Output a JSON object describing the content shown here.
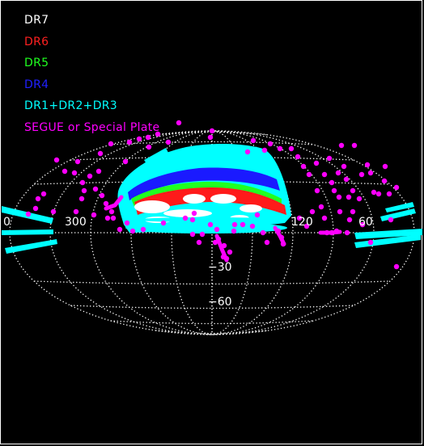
{
  "legend": {
    "items": [
      {
        "label": "DR7",
        "color": "#ffffff"
      },
      {
        "label": "DR6",
        "color": "#ff2020"
      },
      {
        "label": "DR5",
        "color": "#20ff20"
      },
      {
        "label": "DR4",
        "color": "#2020ff"
      },
      {
        "label": "DR1+DR2+DR3",
        "color": "#00ffff"
      },
      {
        "label": "SEGUE or Special Plate",
        "color": "#ff00ff"
      }
    ]
  },
  "map": {
    "projection": "aitoff",
    "graticule_color": "#ffffff",
    "longitude_labels": [
      "0",
      "300",
      "120",
      "60"
    ],
    "latitude_labels": [
      "−30",
      "−60"
    ]
  }
}
